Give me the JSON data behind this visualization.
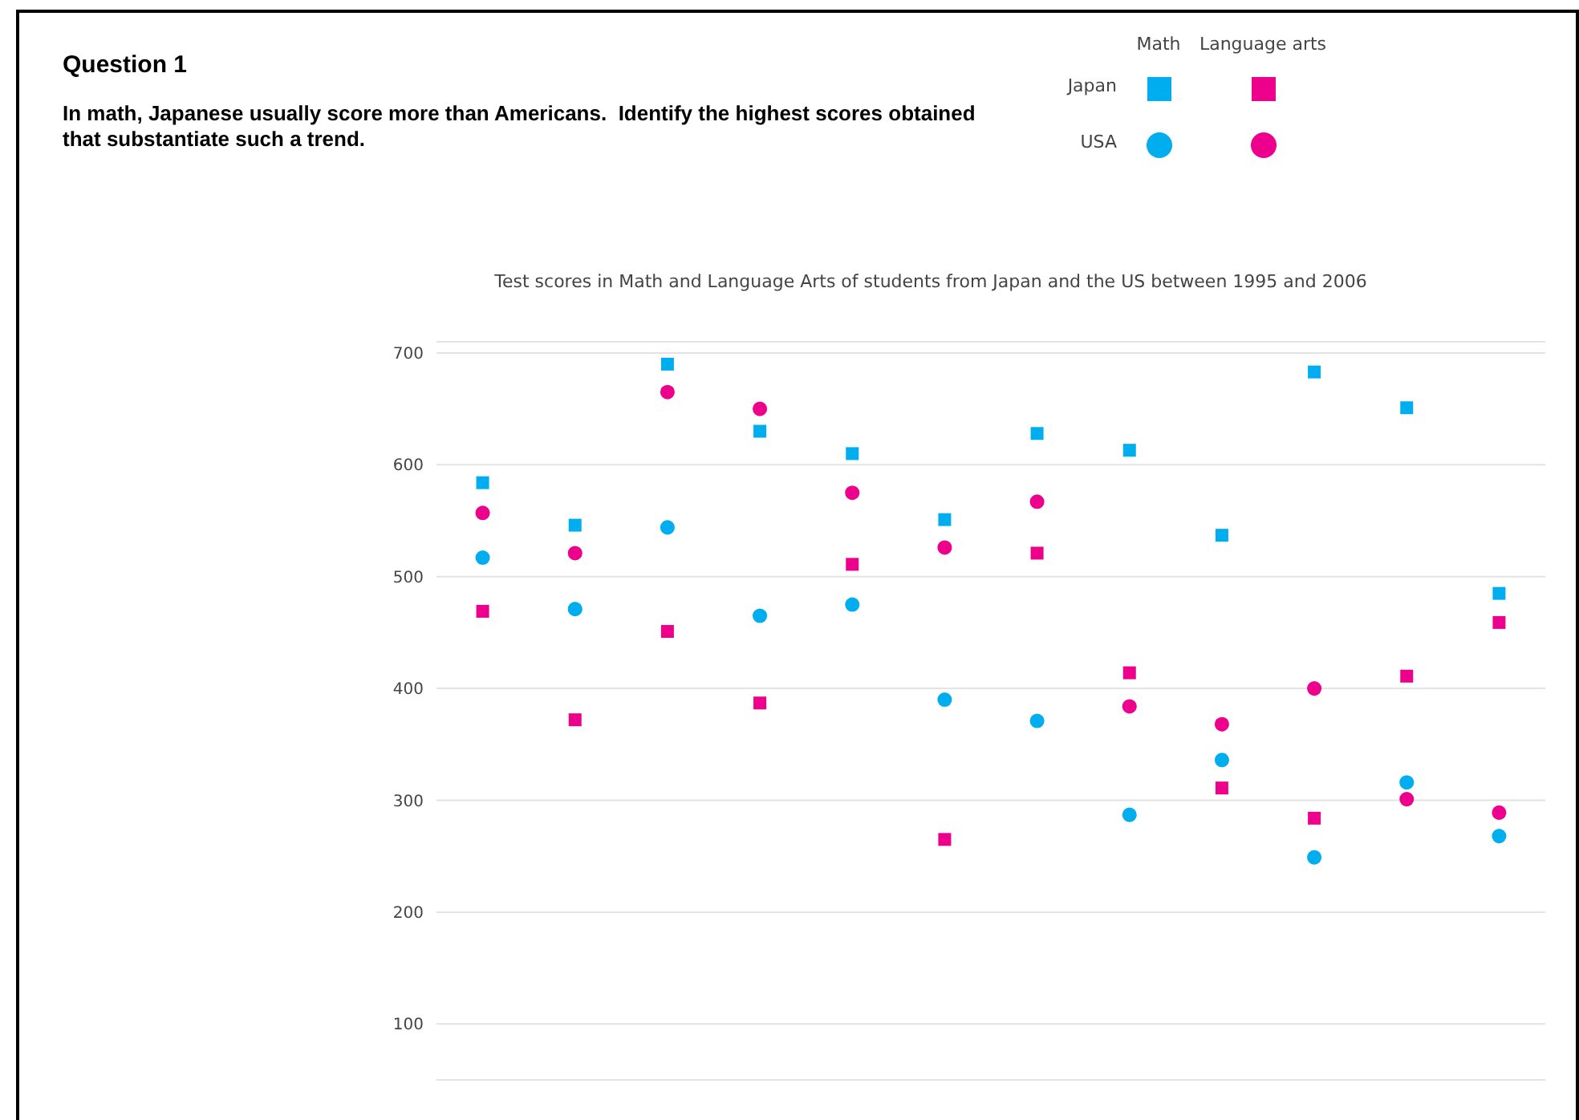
{
  "chart_data": {
    "type": "scatter",
    "title": "Test scores in Math and Language Arts of students from Japan and the US between 1995 and 2006",
    "annotations": [
      "Question 1",
      "In math, Japanese usually score more than Americans.  Identify the highest scores obtained that substantiate such a trend.",
      "Math",
      "Language arts",
      "Japan",
      "USA"
    ],
    "categories": [
      null,
      null,
      null,
      null,
      null,
      null,
      null,
      null,
      null,
      null,
      null,
      null
    ],
    "series": [
      {
        "color": "#00aeef",
        "marker": "square",
        "values": [
          584,
          546,
          690,
          630,
          610,
          551,
          628,
          613,
          537,
          683,
          651,
          485
        ]
      },
      {
        "color": "#ec008c",
        "marker": "square",
        "values": [
          469,
          372,
          451,
          387,
          511,
          265,
          521,
          414,
          311,
          284,
          411,
          459
        ]
      },
      {
        "color": "#00aeef",
        "marker": "circle",
        "values": [
          517,
          471,
          544,
          465,
          475,
          390,
          371,
          287,
          336,
          249,
          316,
          268
        ]
      },
      {
        "color": "#ec008c",
        "marker": "circle",
        "values": [
          557,
          521,
          665,
          650,
          575,
          526,
          567,
          384,
          368,
          400,
          301,
          289
        ]
      }
    ],
    "ylim": [
      50,
      710
    ],
    "yticks": [
      100,
      200,
      300,
      400,
      500,
      600,
      700
    ],
    "grid": "y",
    "tick_labels": "y"
  }
}
